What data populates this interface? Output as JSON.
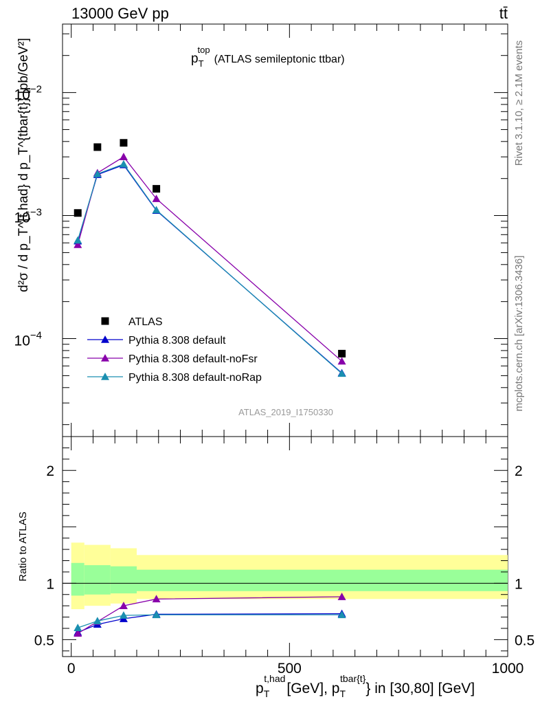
{
  "header": {
    "energy_label": "13000 GeV pp",
    "process_label": "tt̄"
  },
  "side_labels": {
    "rivet": "Rivet 3.1.10, ≥ 2.1M events",
    "mcplots": "mcplots.cern.ch [arXiv:1306.3436]"
  },
  "chart_data": [
    {
      "type": "scatter",
      "panel": "main",
      "title_main": "p",
      "title_sup": "top",
      "title_sub": "T",
      "title_rest": "(ATLAS semileptonic ttbar)",
      "analysis_label": "ATLAS_2019_I1750330",
      "ylabel": "d²σ / d p_T^{t,had} d p_T^{tbar{t}} [pb/GeV²]",
      "yscale": "log",
      "ylim": [
        1.6e-05,
        0.036
      ],
      "xlim": [
        -20,
        1000
      ],
      "y_tick_labels": [
        {
          "value": 0.0001,
          "base": "10",
          "exp": "−4"
        },
        {
          "value": 0.001,
          "base": "10",
          "exp": "−3"
        },
        {
          "value": 0.01,
          "base": "10",
          "exp": "−2"
        }
      ],
      "legend_position": "lower-left",
      "series": [
        {
          "name": "ATLAS",
          "marker": "square",
          "color": "#000000",
          "x": [
            15,
            60,
            120,
            195,
            620
          ],
          "y": [
            0.00105,
            0.0036,
            0.0039,
            0.00165,
            7.55e-05
          ]
        },
        {
          "name": "Pythia 8.308 default",
          "marker": "triangle",
          "color": "#0000cc",
          "x": [
            15,
            60,
            120,
            195,
            620
          ],
          "y": [
            0.00062,
            0.00215,
            0.00258,
            0.0011,
            5.25e-05
          ]
        },
        {
          "name": "Pythia 8.308 default-noFsr",
          "marker": "triangle",
          "color": "#8800aa",
          "x": [
            15,
            60,
            120,
            195,
            620
          ],
          "y": [
            0.00058,
            0.00222,
            0.003,
            0.00137,
            6.55e-05
          ]
        },
        {
          "name": "Pythia 8.308 default-noRap",
          "marker": "triangle",
          "color": "#1a8fb0",
          "x": [
            15,
            60,
            120,
            195,
            620
          ],
          "y": [
            0.00063,
            0.00218,
            0.00262,
            0.00111,
            5.2e-05
          ]
        }
      ]
    },
    {
      "type": "line",
      "panel": "ratio",
      "ylabel": "Ratio to ATLAS",
      "xlabel_main": "p",
      "xlabel_sup1": "t,had",
      "xlabel_sub": "T",
      "xlabel_mid": "[GeV], p",
      "xlabel_sup2": "tbar{t}",
      "xlabel_rest": "} in [30,80] [GeV]",
      "ylim": [
        0.35,
        2.3
      ],
      "xlim": [
        -20,
        1000
      ],
      "x_ticks": [
        0,
        500,
        1000
      ],
      "y_ticks": [
        0.5,
        1,
        2
      ],
      "bands": {
        "yellow_color": "#ffff99",
        "green_color": "#99ff99",
        "bins": [
          {
            "x0": 0,
            "x1": 30,
            "yellow": [
              0.77,
              1.36
            ],
            "green": [
              0.89,
              1.18
            ]
          },
          {
            "x0": 30,
            "x1": 90,
            "yellow": [
              0.8,
              1.34
            ],
            "green": [
              0.9,
              1.16
            ]
          },
          {
            "x0": 90,
            "x1": 150,
            "yellow": [
              0.82,
              1.31
            ],
            "green": [
              0.91,
              1.15
            ]
          },
          {
            "x0": 150,
            "x1": 1000,
            "yellow": [
              0.86,
              1.25
            ],
            "green": [
              0.93,
              1.12
            ]
          }
        ]
      },
      "series": [
        {
          "name": "Pythia 8.308 default",
          "color": "#0000cc",
          "x": [
            15,
            60,
            120,
            195,
            620
          ],
          "y": [
            0.565,
            0.635,
            0.685,
            0.725,
            0.73
          ]
        },
        {
          "name": "Pythia 8.308 default-noFsr",
          "color": "#8800aa",
          "x": [
            15,
            60,
            120,
            195,
            620
          ],
          "y": [
            0.555,
            0.66,
            0.8,
            0.86,
            0.88
          ]
        },
        {
          "name": "Pythia 8.308 default-noRap",
          "color": "#1a8fb0",
          "x": [
            15,
            60,
            120,
            195,
            620
          ],
          "y": [
            0.605,
            0.665,
            0.715,
            0.72,
            0.72
          ]
        }
      ]
    }
  ]
}
